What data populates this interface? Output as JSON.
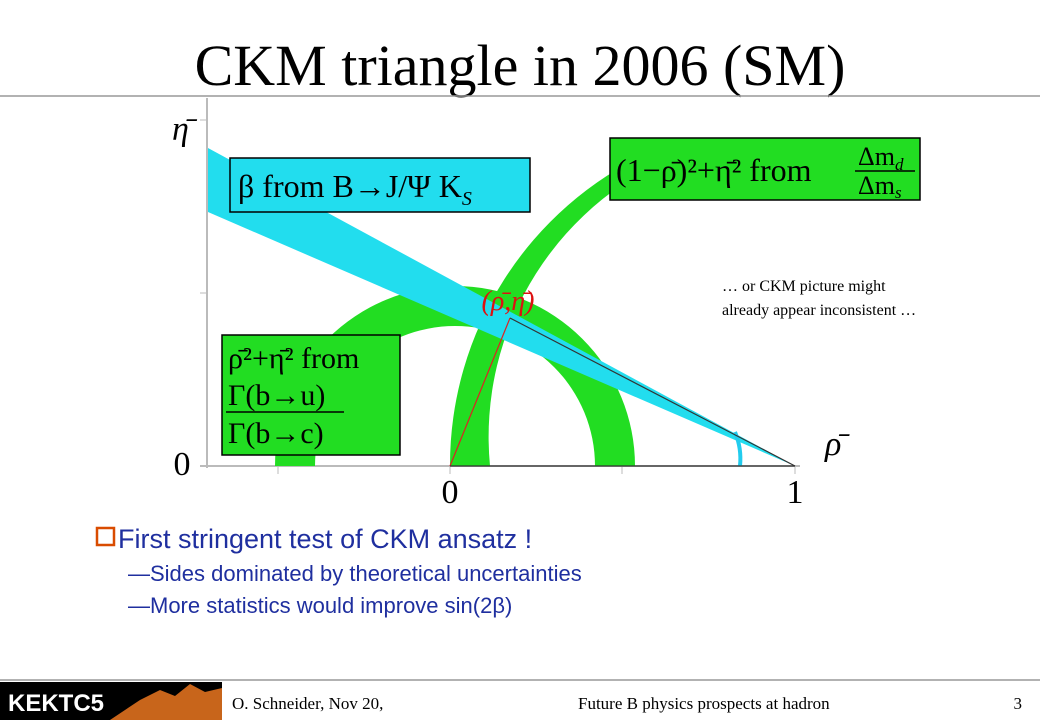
{
  "title": "CKM triangle in 2006 (SM)",
  "diagram": {
    "y_axis_label": "η̄",
    "x_axis_label": "ρ̄",
    "y_zero": "0",
    "x_zero": "0",
    "x_one": "1",
    "point_label": "(ρ̄,η̄)",
    "boxes": [
      {
        "text": "β from B→J/Ψ K",
        "subscript": "S"
      },
      {
        "text": "(1−ρ̄)²+η̄² from",
        "numerator": "Δm",
        "numerator_sub": "d",
        "denominator": "Δm",
        "denominator_sub": "s"
      },
      {
        "text": "ρ̄²+η̄² from",
        "numerator": "Γ(b→u)",
        "denominator": "Γ(b→c)"
      }
    ],
    "annotation": [
      "… or CKM picture might",
      "already appear inconsistent …"
    ]
  },
  "bullets": {
    "main": "First stringent test of CKM ansatz !",
    "sub": [
      "—Sides dominated by theoretical uncertainties",
      "—More statistics would improve sin(2β)"
    ]
  },
  "footer": {
    "logo": "KEKTC5",
    "author": "O. Schneider, Nov 20,",
    "talk": "Future B physics prospects at hadron",
    "page": "3"
  }
}
